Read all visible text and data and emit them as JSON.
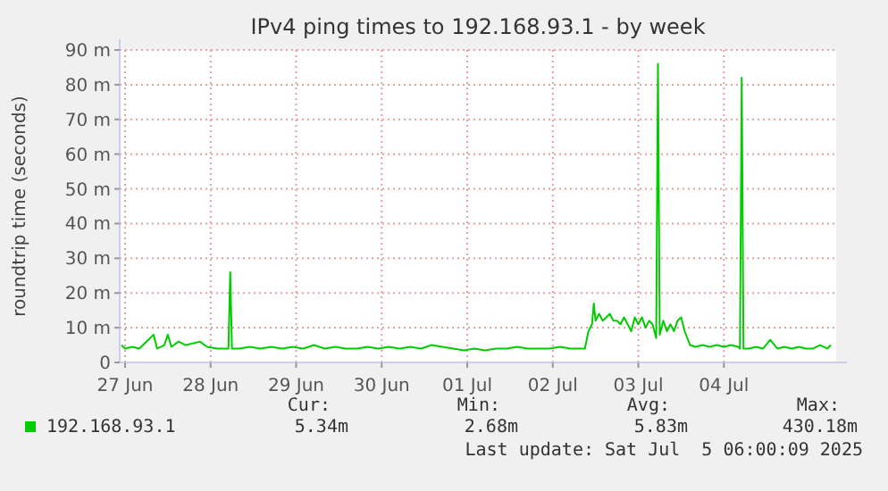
{
  "chart_data": {
    "type": "line",
    "title": "IPv4 ping times to 192.168.93.1 - by week",
    "ylabel": "roundtrip time (seconds)",
    "xlim": [
      "2025-06-26T22:30",
      "2025-07-05T07:30"
    ],
    "xticks": [
      {
        "value": "2025-06-27",
        "label": "27 Jun"
      },
      {
        "value": "2025-06-28",
        "label": "28 Jun"
      },
      {
        "value": "2025-06-29",
        "label": "29 Jun"
      },
      {
        "value": "2025-06-30",
        "label": "30 Jun"
      },
      {
        "value": "2025-07-01",
        "label": "01 Jul"
      },
      {
        "value": "2025-07-02",
        "label": "02 Jul"
      },
      {
        "value": "2025-07-03",
        "label": "03 Jul"
      },
      {
        "value": "2025-07-04",
        "label": "04 Jul"
      }
    ],
    "ylim": [
      0,
      90
    ],
    "yticks": [
      0,
      {
        "value": 10,
        "label": "10 m"
      },
      {
        "value": 20,
        "label": "20 m"
      },
      {
        "value": 30,
        "label": "30 m"
      },
      {
        "value": 40,
        "label": "40 m"
      },
      {
        "value": 50,
        "label": "50 m"
      },
      {
        "value": 60,
        "label": "60 m"
      },
      {
        "value": 70,
        "label": "70 m"
      },
      {
        "value": 80,
        "label": "80 m"
      },
      {
        "value": 90,
        "label": "90 m"
      }
    ],
    "grid": true,
    "legend": "bottom",
    "marker": "none",
    "line_style": "solid",
    "x": [
      "2025-06-26T23:00",
      "2025-06-27T00:00",
      "2025-06-27T02:00",
      "2025-06-27T04:00",
      "2025-06-27T06:00",
      "2025-06-27T08:00",
      "2025-06-27T09:00",
      "2025-06-27T11:00",
      "2025-06-27T12:00",
      "2025-06-27T13:00",
      "2025-06-27T15:00",
      "2025-06-27T17:00",
      "2025-06-27T19:00",
      "2025-06-27T21:00",
      "2025-06-27T23:00",
      "2025-06-28T02:00",
      "2025-06-28T05:00",
      "2025-06-28T05:30",
      "2025-06-28T06:00",
      "2025-06-28T08:00",
      "2025-06-28T11:00",
      "2025-06-28T14:00",
      "2025-06-28T17:00",
      "2025-06-28T20:00",
      "2025-06-28T23:00",
      "2025-06-29T02:00",
      "2025-06-29T05:00",
      "2025-06-29T08:00",
      "2025-06-29T11:00",
      "2025-06-29T14:00",
      "2025-06-29T17:00",
      "2025-06-29T20:00",
      "2025-06-29T23:00",
      "2025-06-30T02:00",
      "2025-06-30T05:00",
      "2025-06-30T08:00",
      "2025-06-30T11:00",
      "2025-06-30T14:00",
      "2025-06-30T17:00",
      "2025-06-30T20:00",
      "2025-06-30T23:00",
      "2025-07-01T02:00",
      "2025-07-01T05:00",
      "2025-07-01T08:00",
      "2025-07-01T11:00",
      "2025-07-01T14:00",
      "2025-07-01T17:00",
      "2025-07-01T20:00",
      "2025-07-01T23:00",
      "2025-07-02T02:00",
      "2025-07-02T05:00",
      "2025-07-02T08:00",
      "2025-07-02T09:00",
      "2025-07-02T10:00",
      "2025-07-02T11:00",
      "2025-07-02T11:30",
      "2025-07-02T12:00",
      "2025-07-02T13:00",
      "2025-07-02T14:00",
      "2025-07-02T15:00",
      "2025-07-02T16:00",
      "2025-07-02T17:00",
      "2025-07-02T18:00",
      "2025-07-02T19:00",
      "2025-07-02T20:00",
      "2025-07-02T21:00",
      "2025-07-02T22:00",
      "2025-07-02T23:00",
      "2025-07-03T00:00",
      "2025-07-03T01:00",
      "2025-07-03T02:00",
      "2025-07-03T03:00",
      "2025-07-03T04:00",
      "2025-07-03T05:00",
      "2025-07-03T05:30",
      "2025-07-03T06:00",
      "2025-07-03T07:00",
      "2025-07-03T08:00",
      "2025-07-03T09:00",
      "2025-07-03T10:00",
      "2025-07-03T11:00",
      "2025-07-03T12:00",
      "2025-07-03T13:00",
      "2025-07-03T14:30",
      "2025-07-03T16:00",
      "2025-07-03T18:00",
      "2025-07-03T20:00",
      "2025-07-03T22:00",
      "2025-07-04T00:00",
      "2025-07-04T02:00",
      "2025-07-04T04:00",
      "2025-07-04T04:30",
      "2025-07-04T05:00",
      "2025-07-04T05:30",
      "2025-07-04T07:00",
      "2025-07-04T09:00",
      "2025-07-04T11:00",
      "2025-07-04T13:00",
      "2025-07-04T15:00",
      "2025-07-04T17:00",
      "2025-07-04T19:00",
      "2025-07-04T21:00",
      "2025-07-04T23:00",
      "2025-07-05T01:00",
      "2025-07-05T03:00",
      "2025-07-05T05:00",
      "2025-07-05T06:00"
    ],
    "series": [
      {
        "name": "192.168.93.1",
        "color": "#00cc00",
        "values": [
          5,
          4,
          4.5,
          4,
          6,
          8,
          4,
          5,
          8,
          4.5,
          6,
          5,
          5.5,
          6,
          4.5,
          4,
          4,
          26,
          4,
          4,
          4.5,
          4,
          4.5,
          4,
          4.5,
          4,
          5,
          4,
          4.5,
          4,
          4,
          4.5,
          4,
          4.5,
          4,
          4.5,
          4,
          5,
          4.5,
          4,
          3.5,
          4,
          3.5,
          4,
          4,
          4.5,
          4,
          4,
          4,
          4.5,
          4,
          4,
          4,
          9,
          11,
          17,
          12,
          14,
          12,
          13,
          14,
          12,
          12,
          11,
          13,
          11,
          9,
          13,
          11,
          13,
          10,
          12,
          11,
          7,
          86,
          8,
          12,
          9,
          11,
          9,
          12,
          13,
          9,
          5,
          4.5,
          5,
          4.5,
          5,
          4.5,
          5,
          4.5,
          4,
          82,
          4,
          4,
          4.5,
          4,
          6.5,
          4,
          4.5,
          4,
          4.5,
          4,
          4,
          5,
          4,
          5
        ]
      }
    ],
    "annotations": [
      "Cur:",
      "5.34m",
      "Min:",
      "2.68m",
      "Avg:",
      "5.83m",
      "Max:",
      "430.18m",
      "Last update: Sat Jul  5 06:00:09 2025"
    ]
  }
}
